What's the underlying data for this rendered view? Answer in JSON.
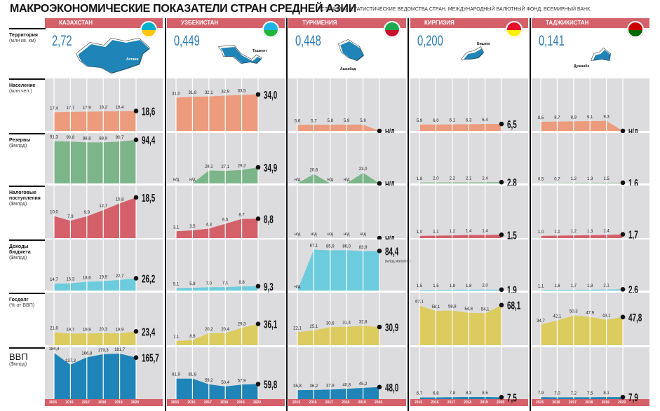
{
  "title": "МАКРОЭКОНОМИЧЕСКИЕ ПОКАЗАТЕЛИ СТРАН СРЕДНЕЙ АЗИИ",
  "sources": "ИСТОЧНИКИ: СТАТИСТИЧЕСКИЕ ВЕДОМСТВА СТРАН, МЕЖДУНАРОДНЫЙ ВАЛЮТНЫЙ ФОНД, ВСЕМИРНЫЙ БАНК.",
  "territory_label": {
    "name": "Территория",
    "unit": "(млн кв. км)"
  },
  "colors": {
    "header": "#d4606a",
    "panel": "#dcdcde",
    "territory_value": "#2a7ab0",
    "map": "#1f85b8"
  },
  "chart_data": {
    "type": "area",
    "years": [
      "2015",
      "2016",
      "2017",
      "2018",
      "2019",
      "2020"
    ],
    "na_label": "Н/Д",
    "na_small": "н/д",
    "indicators": [
      {
        "key": "population",
        "name": "Население",
        "unit": "(млн чел.)",
        "color": "#ec9b7c",
        "ylim": [
          0,
          45
        ]
      },
      {
        "key": "reserves",
        "name": "Резервы",
        "unit": "($млрд)",
        "color": "#7db58a",
        "ylim": [
          0,
          100
        ]
      },
      {
        "key": "tax",
        "name": "Налоговые поступления",
        "unit": "($млрд)",
        "color": "#d4606a",
        "ylim": [
          0,
          22
        ]
      },
      {
        "key": "budget",
        "name": "Доходы бюджета",
        "unit": "($млрд)",
        "color": "#6ccbdc",
        "ylim": [
          0,
          100
        ]
      },
      {
        "key": "debt",
        "name": "Госдолг",
        "unit": "(% от ВВП)",
        "color": "#dccb5e",
        "ylim": [
          0,
          82
        ]
      },
      {
        "key": "gdp",
        "name": "ВВП",
        "unit": "($млрд)",
        "color": "#1f85b8",
        "ylim": [
          0,
          190
        ]
      }
    ],
    "countries": [
      {
        "name": "КАЗАХСТАН",
        "territory": "2,72",
        "capital": "Астана",
        "flag": [
          "#00afca",
          "#fec50c"
        ],
        "series": {
          "population": [
            17.4,
            17.7,
            17.9,
            18.2,
            18.4,
            18.6
          ],
          "reserves": [
            91.3,
            90.8,
            88.8,
            88.9,
            90.7,
            94.4
          ],
          "tax": [
            10.0,
            7.9,
            9.9,
            12.7,
            15.8,
            18.5
          ],
          "budget": [
            14.7,
            15.3,
            18.6,
            19.9,
            22.7,
            26.2
          ],
          "debt": [
            21.9,
            19.7,
            19.9,
            20.3,
            19.9,
            23.4
          ],
          "gdp": [
            184.4,
            137.3,
            166.8,
            179.3,
            181.7,
            165.7
          ]
        }
      },
      {
        "name": "УЗБЕКИСТАН",
        "territory": "0,449",
        "capital": "Ташкент",
        "flag": [
          "#1eb2e6",
          "#1eb53a"
        ],
        "series": {
          "population": [
            31.0,
            31.8,
            32.1,
            32.9,
            33.5,
            34.0
          ],
          "reserves": [
            null,
            null,
            28.1,
            27.1,
            29.2,
            34.9
          ],
          "tax": [
            3.1,
            3.5,
            4.3,
            6.5,
            8.7,
            8.8
          ],
          "budget": [
            5.1,
            5.8,
            7.0,
            7.1,
            8.8,
            9.3
          ],
          "debt": [
            7.1,
            8.6,
            20.2,
            20.4,
            29.3,
            36.1
          ],
          "gdp": [
            81.9,
            81.8,
            59.2,
            50.4,
            57.9,
            59.8
          ]
        }
      },
      {
        "name": "ТУРКМЕНИЯ",
        "territory": "0,448",
        "capital": "Ашхабад",
        "flag": [
          "#1ea84f",
          "#c8102e"
        ],
        "budget_note": "(млрд манатов)",
        "series": {
          "population": [
            5.6,
            5.7,
            5.8,
            5.9,
            5.9,
            null
          ],
          "reserves": [
            null,
            20.6,
            null,
            null,
            23.0,
            null
          ],
          "tax": [
            null,
            null,
            null,
            null,
            null,
            null
          ],
          "budget": [
            null,
            87.1,
            85.9,
            86.0,
            83.9,
            84.4
          ],
          "debt": [
            22.1,
            25.1,
            30.6,
            31.4,
            32.8,
            30.9
          ],
          "gdp": [
            35.8,
            36.2,
            37.9,
            40.8,
            45.2,
            48.0
          ]
        }
      },
      {
        "name": "КИРГИЗИЯ",
        "territory": "0,200",
        "capital": "Бишкек",
        "flag": [
          "#e8112d",
          "#ffef00"
        ],
        "series": {
          "population": [
            5.9,
            6.0,
            6.1,
            6.3,
            6.4,
            6.5
          ],
          "reserves": [
            1.8,
            2.0,
            2.2,
            2.1,
            2.4,
            2.8
          ],
          "tax": [
            1.0,
            1.1,
            1.2,
            1.4,
            1.4,
            1.5
          ],
          "budget": [
            1.5,
            1.5,
            1.8,
            1.8,
            2.0,
            1.9
          ],
          "debt": [
            67.1,
            58.1,
            58.8,
            54.8,
            54.1,
            68.1
          ],
          "gdp": [
            6.7,
            6.8,
            7.8,
            8.3,
            8.5,
            7.5
          ]
        }
      },
      {
        "name": "ТАДЖИКИСТАН",
        "territory": "0,141",
        "capital": "Душанбе",
        "flag": [
          "#cc0000",
          "#006600"
        ],
        "series": {
          "population": [
            8.5,
            8.7,
            8.9,
            9.1,
            9.3,
            null
          ],
          "reserves": [
            0.5,
            0.7,
            1.2,
            1.3,
            1.5,
            1.6
          ],
          "tax": [
            1.0,
            1.1,
            1.2,
            1.3,
            1.4,
            1.7
          ],
          "budget": [
            1.1,
            1.6,
            1.7,
            1.8,
            2.1,
            2.6
          ],
          "debt": [
            34.7,
            42.1,
            50.3,
            47.9,
            43.1,
            47.8
          ],
          "gdp": [
            7.9,
            7.0,
            7.2,
            7.5,
            8.1,
            7.9
          ]
        }
      }
    ]
  }
}
